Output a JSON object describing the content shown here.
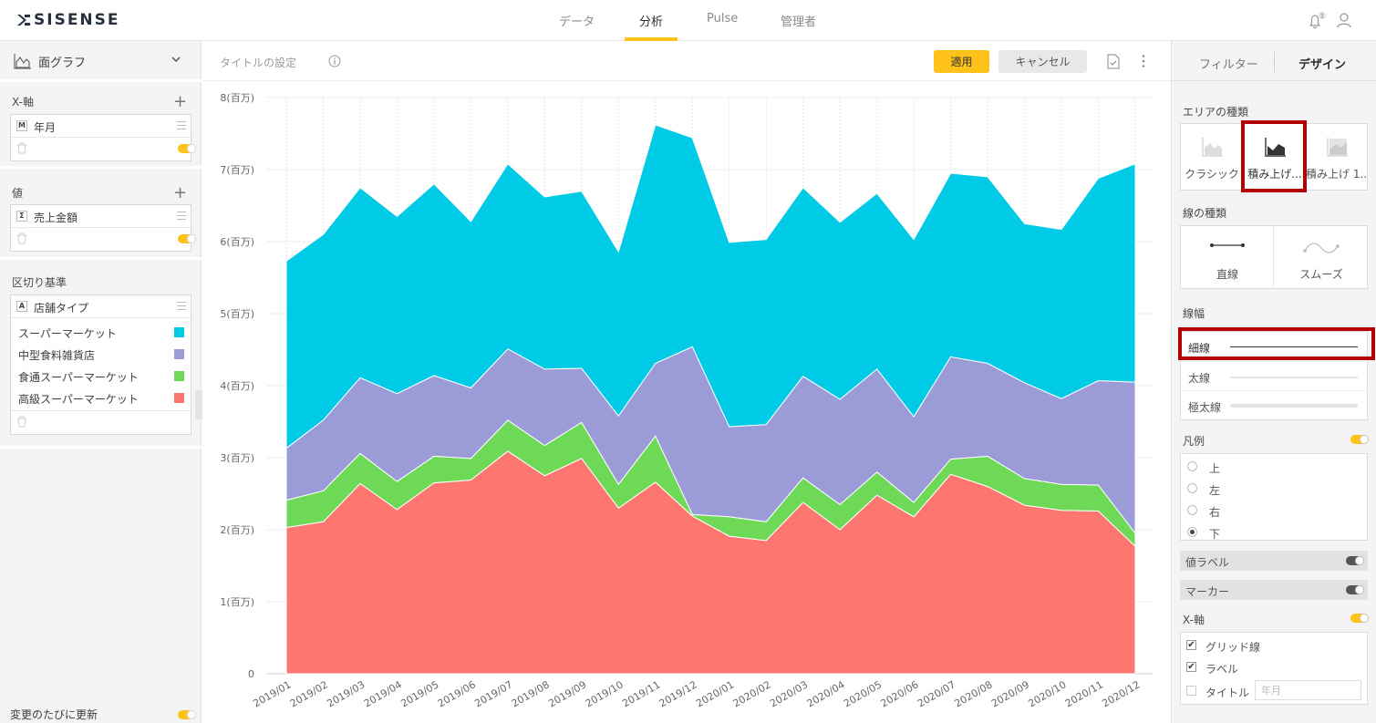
{
  "app": {
    "logo_text": "SISENSE"
  },
  "nav": {
    "items": [
      {
        "label": "データ",
        "active": false
      },
      {
        "label": "分析",
        "active": true
      },
      {
        "label": "Pulse",
        "active": false
      },
      {
        "label": "管理者",
        "active": false
      }
    ],
    "notification_count": "1",
    "accent_color": "#ffc21a"
  },
  "left_panel": {
    "widget_type": "面グラフ",
    "xaxis": {
      "title": "X-軸",
      "field_badge": "M",
      "field": "年月"
    },
    "values": {
      "title": "値",
      "field_badge": "Σ",
      "field": "売上金額"
    },
    "breakby": {
      "title": "区切り基準",
      "field_badge": "A",
      "field": "店舗タイプ",
      "items": [
        {
          "label": "スーパーマーケット",
          "color": "#00cbe6"
        },
        {
          "label": "中型食料雑貨店",
          "color": "#9b9bd7"
        },
        {
          "label": "食通スーパーマーケット",
          "color": "#6ed957"
        },
        {
          "label": "高級スーパーマーケット",
          "color": "#fe7670"
        }
      ]
    },
    "auto_update_label": "変更のたびに更新"
  },
  "center": {
    "title_placeholder": "タイトルの設定",
    "apply_label": "適用",
    "cancel_label": "キャンセル"
  },
  "chart_data": {
    "type": "area",
    "stacked": true,
    "title": "",
    "xlabel": "",
    "ylabel": "",
    "y_unit_suffix": "(百万)",
    "ylim": [
      0,
      8000000
    ],
    "yticks": [
      "0",
      "1(百万)",
      "2(百万)",
      "3(百万)",
      "4(百万)",
      "5(百万)",
      "6(百万)",
      "7(百万)",
      "8(百万)"
    ],
    "categories": [
      "2019/01",
      "2019/02",
      "2019/03",
      "2019/04",
      "2019/05",
      "2019/06",
      "2019/07",
      "2019/08",
      "2019/09",
      "2019/10",
      "2019/11",
      "2019/12",
      "2020/01",
      "2020/02",
      "2020/03",
      "2020/04",
      "2020/05",
      "2020/06",
      "2020/07",
      "2020/08",
      "2020/09",
      "2020/10",
      "2020/11",
      "2020/12"
    ],
    "series": [
      {
        "name": "高級スーパーマーケット",
        "color": "#fe7670",
        "values": [
          2030000,
          2110000,
          2640000,
          2280000,
          2650000,
          2690000,
          3090000,
          2750000,
          2990000,
          2300000,
          2660000,
          2190000,
          1910000,
          1850000,
          2380000,
          2000000,
          2480000,
          2180000,
          2770000,
          2600000,
          2340000,
          2270000,
          2260000,
          1770000
        ]
      },
      {
        "name": "食通スーパーマーケット",
        "color": "#6ed957",
        "values": [
          380000,
          430000,
          420000,
          390000,
          370000,
          300000,
          430000,
          420000,
          500000,
          330000,
          640000,
          20000,
          270000,
          260000,
          340000,
          350000,
          320000,
          200000,
          210000,
          420000,
          370000,
          360000,
          360000,
          180000
        ]
      },
      {
        "name": "中型食料雑貨店",
        "color": "#9b9bd7",
        "values": [
          720000,
          980000,
          1050000,
          1220000,
          1120000,
          980000,
          990000,
          1060000,
          750000,
          950000,
          1010000,
          2330000,
          1250000,
          1350000,
          1410000,
          1460000,
          1430000,
          1190000,
          1420000,
          1290000,
          1330000,
          1190000,
          1450000,
          2100000
        ]
      },
      {
        "name": "スーパーマーケット",
        "color": "#00cbe6",
        "values": [
          2600000,
          2580000,
          2640000,
          2460000,
          2660000,
          2310000,
          2570000,
          2390000,
          2460000,
          2280000,
          3310000,
          2900000,
          2560000,
          2570000,
          2620000,
          2460000,
          2440000,
          2460000,
          2550000,
          2590000,
          2210000,
          2350000,
          2810000,
          3030000
        ]
      }
    ],
    "legend_position": "bottom",
    "grid": true
  },
  "right_panel": {
    "tabs": [
      {
        "label": "フィルター",
        "active": false
      },
      {
        "label": "デザイン",
        "active": true
      }
    ],
    "area_type": {
      "title": "エリアの種類",
      "options": [
        {
          "label": "クラシック"
        },
        {
          "label": "積み上げ..."
        },
        {
          "label": "積み上げ 1..."
        }
      ],
      "selected": 1
    },
    "line_type": {
      "title": "線の種類",
      "options": [
        {
          "label": "直線"
        },
        {
          "label": "スムーズ"
        }
      ]
    },
    "line_width": {
      "title": "線幅",
      "options": [
        {
          "label": "細線"
        },
        {
          "label": "太線"
        },
        {
          "label": "極太線"
        }
      ],
      "selected": 0
    },
    "legend": {
      "title": "凡例",
      "enabled": true,
      "options": [
        {
          "label": "上"
        },
        {
          "label": "左"
        },
        {
          "label": "右"
        },
        {
          "label": "下"
        }
      ],
      "selected": 3
    },
    "value_labels": {
      "title": "値ラベル",
      "enabled": false
    },
    "markers": {
      "title": "マーカー",
      "enabled": false
    },
    "xaxis": {
      "title": "X-軸",
      "enabled": true,
      "grid_label": "グリッド線",
      "grid": true,
      "labels_label": "ラベル",
      "labels": true,
      "title_label": "タイトル",
      "title_enabled": false,
      "title_placeholder": "年月"
    }
  }
}
